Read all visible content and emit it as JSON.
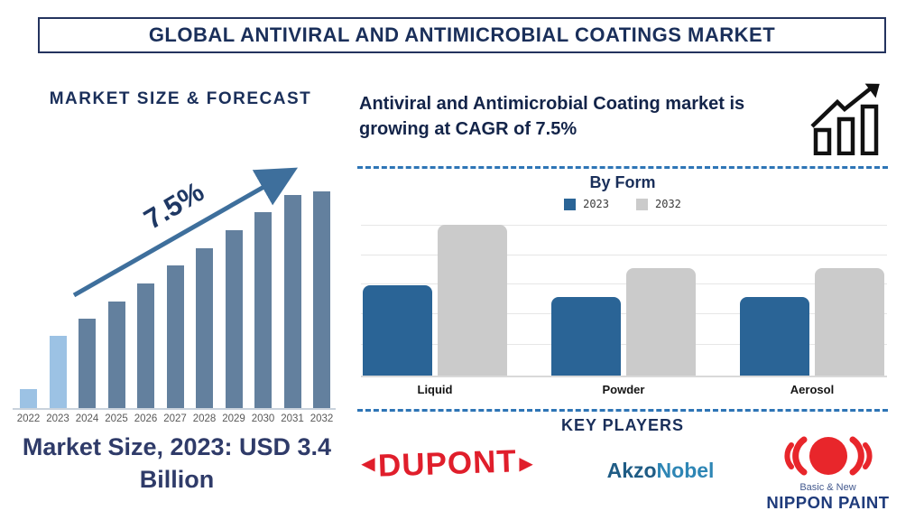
{
  "header": {
    "title": "GLOBAL ANTIVIRAL AND ANTIMICROBIAL COATINGS MARKET"
  },
  "market_size": {
    "heading": "MARKET SIZE & FORECAST",
    "cagr_label": "7.5%",
    "caption": "Market Size, 2023: USD 3.4 Billion"
  },
  "growth_note": {
    "text": "Antiviral and Antimicrobial Coating market is growing at CAGR of 7.5%"
  },
  "by_form": {
    "title": "By Form"
  },
  "key_players": {
    "heading": "KEY PLAYERS",
    "dupont_text": "DUPONT",
    "akzo_text_1": "Akzo",
    "akzo_text_2": "Nobel",
    "nippon_sub": "Basic & New",
    "nippon_main": "NIPPON PAINT"
  },
  "colors": {
    "navy": "#1a2f5a",
    "forecast_bar": "#63809e",
    "forecast_bar_highlight": "#9cc2e4",
    "arrow_blue": "#3e6f9c",
    "byform_blue": "#2a6496",
    "byform_gray": "#cbcbcb",
    "dashed_line": "#2e75b6",
    "dupont_red": "#e01e2b",
    "nippon_red": "#e8262b",
    "nippon_navy": "#1f3b7b"
  },
  "chart_data": [
    {
      "type": "bar",
      "title": "MARKET SIZE & FORECAST",
      "x": [
        "2022",
        "2023",
        "2024",
        "2025",
        "2026",
        "2027",
        "2028",
        "2029",
        "2030",
        "2031",
        "2032"
      ],
      "values_relative": [
        21,
        80,
        99,
        118,
        138,
        158,
        177,
        197,
        217,
        236,
        240
      ],
      "units": "relative height (no y-axis shown); 2023 = USD 3.4 Billion",
      "bar_color": "#63809e",
      "highlight": {
        "years": [
          "2022",
          "2023"
        ],
        "color": "#9cc2e4"
      },
      "annotation": {
        "text": "7.5%",
        "kind": "growth-arrow"
      },
      "xlabel": "",
      "ylabel": "",
      "grid": false,
      "legend_position": "none"
    },
    {
      "type": "bar",
      "subtype": "grouped",
      "title": "By Form",
      "categories": [
        "Liquid",
        "Powder",
        "Aerosol"
      ],
      "series": [
        {
          "name": "2023",
          "color": "#2a6496",
          "values_relative": [
            100,
            87,
            87
          ]
        },
        {
          "name": "2032",
          "color": "#cbcbcb",
          "values_relative": [
            167,
            119,
            119
          ]
        }
      ],
      "units": "relative height (no y-axis shown)",
      "grid": true,
      "legend_position": "top"
    }
  ]
}
